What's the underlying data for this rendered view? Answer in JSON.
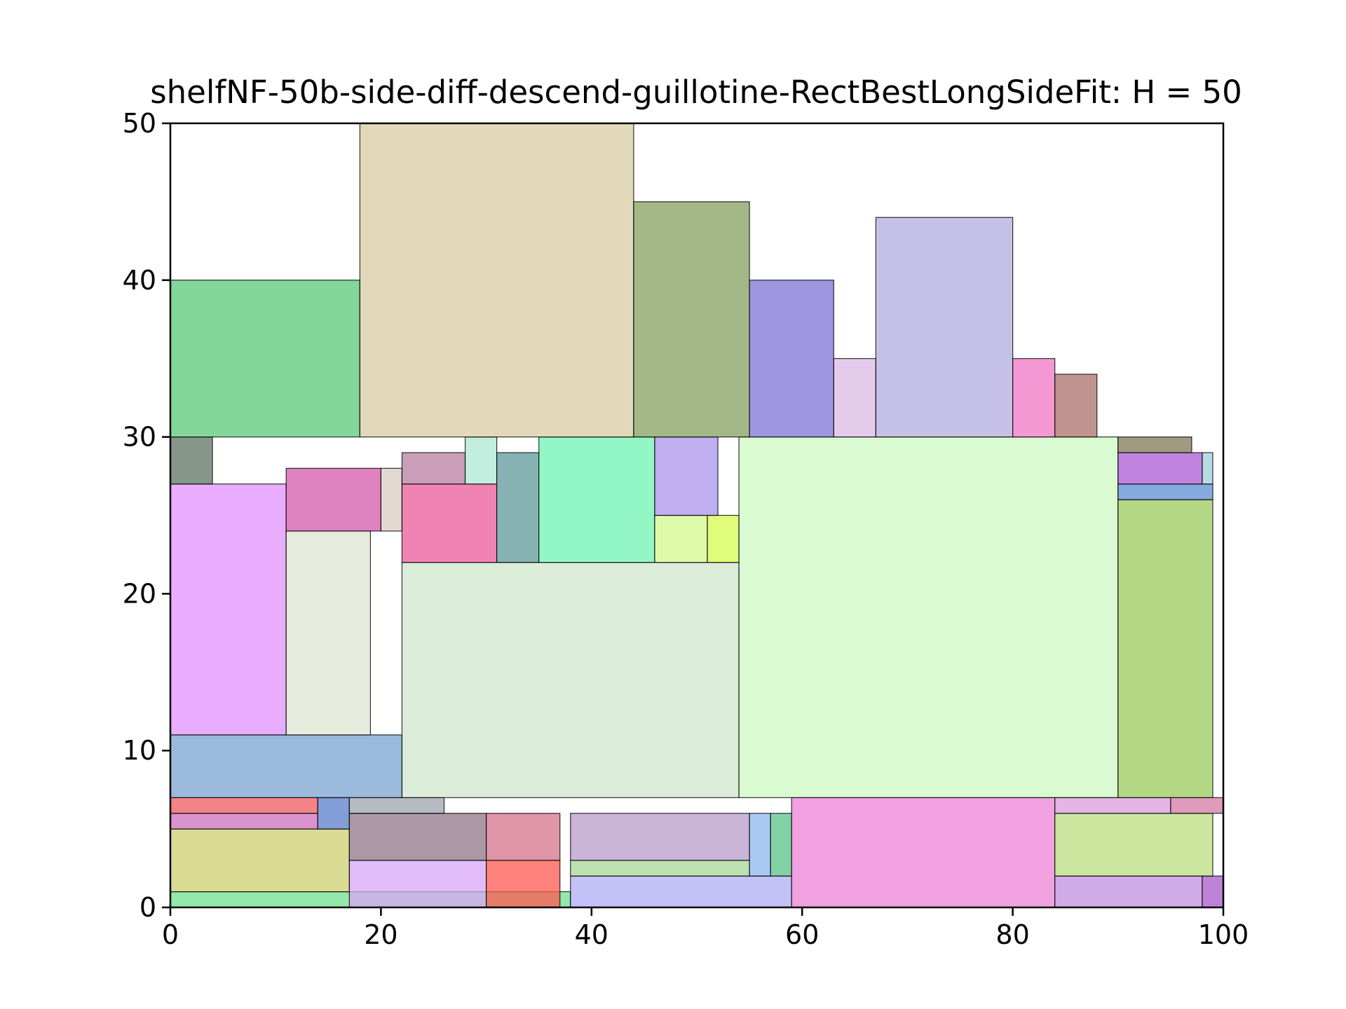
{
  "chart_data": {
    "type": "rectangle-packing",
    "title": "shelfNF-50b-side-diff-descend-guillotine-RectBestLongSideFit: H = 50",
    "xlabel": "",
    "ylabel": "",
    "xlim": [
      0,
      100
    ],
    "ylim": [
      0,
      50
    ],
    "xticks": [
      "0",
      "20",
      "40",
      "60",
      "80",
      "100"
    ],
    "yticks": [
      "0",
      "10",
      "20",
      "30",
      "40",
      "50"
    ],
    "grid": false,
    "rects": [
      {
        "x": 0,
        "y": 0,
        "w": 38,
        "h": 1,
        "color": "#6fe08f"
      },
      {
        "x": 0,
        "y": 1,
        "w": 17,
        "h": 4,
        "color": "#cdd070"
      },
      {
        "x": 0,
        "y": 5,
        "w": 14,
        "h": 1,
        "color": "#cd6fbb"
      },
      {
        "x": 0,
        "y": 6,
        "w": 14,
        "h": 1,
        "color": "#ee5a5f"
      },
      {
        "x": 14,
        "y": 5,
        "w": 3,
        "h": 2,
        "color": "#5a7ccc"
      },
      {
        "x": 17,
        "y": 0,
        "w": 13,
        "h": 3,
        "color": "#d8a6f5"
      },
      {
        "x": 17,
        "y": 3,
        "w": 13,
        "h": 3,
        "color": "#8f7685"
      },
      {
        "x": 17,
        "y": 6,
        "w": 9,
        "h": 1,
        "color": "#9ea4af"
      },
      {
        "x": 30,
        "y": 0,
        "w": 7,
        "h": 3,
        "color": "#ff5a50"
      },
      {
        "x": 30,
        "y": 3,
        "w": 7,
        "h": 3,
        "color": "#d4728a"
      },
      {
        "x": 38,
        "y": 0,
        "w": 21,
        "h": 2,
        "color": "#aeaef5"
      },
      {
        "x": 38,
        "y": 2,
        "w": 17,
        "h": 1,
        "color": "#a8d597"
      },
      {
        "x": 38,
        "y": 3,
        "w": 17,
        "h": 3,
        "color": "#b89bcb"
      },
      {
        "x": 55,
        "y": 2,
        "w": 2,
        "h": 4,
        "color": "#8eb7ee"
      },
      {
        "x": 57,
        "y": 2,
        "w": 2,
        "h": 4,
        "color": "#5ac388"
      },
      {
        "x": 59,
        "y": 0,
        "w": 25,
        "h": 7,
        "color": "#ec82d6"
      },
      {
        "x": 84,
        "y": 0,
        "w": 14,
        "h": 2,
        "color": "#c08fdf"
      },
      {
        "x": 98,
        "y": 0,
        "w": 2,
        "h": 2,
        "color": "#a85ac8"
      },
      {
        "x": 84,
        "y": 2,
        "w": 15,
        "h": 4,
        "color": "#b8de7f"
      },
      {
        "x": 84,
        "y": 6,
        "w": 11,
        "h": 1,
        "color": "#dc9ade"
      },
      {
        "x": 95,
        "y": 6,
        "w": 5,
        "h": 1,
        "color": "#d578a5"
      },
      {
        "x": 0,
        "y": 7,
        "w": 22,
        "h": 4,
        "color": "#7ba3d0"
      },
      {
        "x": 0,
        "y": 11,
        "w": 11,
        "h": 16,
        "color": "#e290fd"
      },
      {
        "x": 11,
        "y": 11,
        "w": 8,
        "h": 13,
        "color": "#dee6d2"
      },
      {
        "x": 11,
        "y": 24,
        "w": 9,
        "h": 4,
        "color": "#d35aab"
      },
      {
        "x": 20,
        "y": 24,
        "w": 2,
        "h": 4,
        "color": "#dbccc3"
      },
      {
        "x": 0,
        "y": 27,
        "w": 4,
        "h": 3,
        "color": "#5c7463"
      },
      {
        "x": 22,
        "y": 7,
        "w": 32,
        "h": 15,
        "color": "#cfe7cc"
      },
      {
        "x": 22,
        "y": 22,
        "w": 9,
        "h": 5,
        "color": "#ec5a9b"
      },
      {
        "x": 22,
        "y": 27,
        "w": 6,
        "h": 2,
        "color": "#b97ea1"
      },
      {
        "x": 28,
        "y": 27,
        "w": 3,
        "h": 3,
        "color": "#ade8d6"
      },
      {
        "x": 31,
        "y": 22,
        "w": 4,
        "h": 7,
        "color": "#5f9899"
      },
      {
        "x": 35,
        "y": 22,
        "w": 11,
        "h": 8,
        "color": "#6ef4b1"
      },
      {
        "x": 46,
        "y": 22,
        "w": 5,
        "h": 3,
        "color": "#d4f78e"
      },
      {
        "x": 51,
        "y": 22,
        "w": 3,
        "h": 3,
        "color": "#d7fa4e"
      },
      {
        "x": 46,
        "y": 25,
        "w": 6,
        "h": 5,
        "color": "#a994ec"
      },
      {
        "x": 54,
        "y": 7,
        "w": 36,
        "h": 23,
        "color": "#cdf8c1"
      },
      {
        "x": 90,
        "y": 7,
        "w": 9,
        "h": 19,
        "color": "#9bc95e"
      },
      {
        "x": 90,
        "y": 26,
        "w": 9,
        "h": 1,
        "color": "#5d8dd4"
      },
      {
        "x": 90,
        "y": 27,
        "w": 8,
        "h": 2,
        "color": "#a95ad4"
      },
      {
        "x": 98,
        "y": 27,
        "w": 1,
        "h": 2,
        "color": "#9fd0de"
      },
      {
        "x": 90,
        "y": 29,
        "w": 7,
        "h": 1,
        "color": "#807859"
      },
      {
        "x": 0,
        "y": 30,
        "w": 18,
        "h": 10,
        "color": "#5ac979"
      },
      {
        "x": 18,
        "y": 30,
        "w": 26,
        "h": 20,
        "color": "#d7cca2"
      },
      {
        "x": 44,
        "y": 30,
        "w": 11,
        "h": 15,
        "color": "#869f5f"
      },
      {
        "x": 55,
        "y": 30,
        "w": 8,
        "h": 10,
        "color": "#7f73d5"
      },
      {
        "x": 63,
        "y": 30,
        "w": 4,
        "h": 5,
        "color": "#dbbae5"
      },
      {
        "x": 67,
        "y": 30,
        "w": 13,
        "h": 14,
        "color": "#b1acde"
      },
      {
        "x": 80,
        "y": 30,
        "w": 4,
        "h": 5,
        "color": "#f076c6"
      },
      {
        "x": 84,
        "y": 30,
        "w": 4,
        "h": 4,
        "color": "#ab7068"
      }
    ]
  }
}
